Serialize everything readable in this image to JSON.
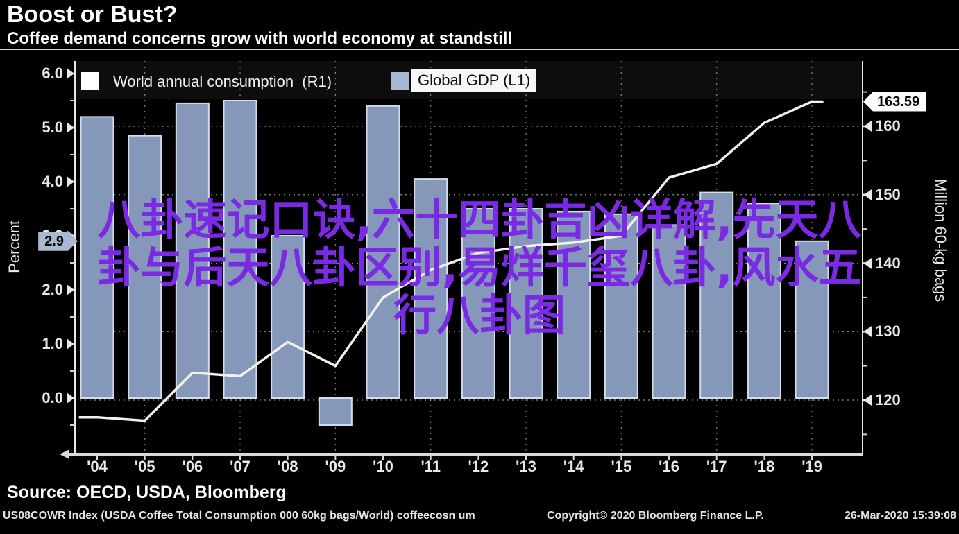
{
  "header": {
    "title": "Boost or Bust?",
    "subtitle": "Coffee demand concerns grow with world economy at standstill"
  },
  "legend": {
    "consumption": {
      "label": "World annual consumption  (R1)",
      "swatch_color": "#ffffff",
      "selected": false
    },
    "gdp": {
      "label": "Global GDP (L1)",
      "swatch_color": "#aab9d2",
      "selected": true
    }
  },
  "chart_data": {
    "type": "combo-bar-line",
    "categories": [
      "'04",
      "'05",
      "'06",
      "'07",
      "'08",
      "'09",
      "'10",
      "'11",
      "'12",
      "'13",
      "'14",
      "'15",
      "'16",
      "'17",
      "'18",
      "'19"
    ],
    "series": [
      {
        "name": "Global GDP (L1)",
        "type": "bar",
        "axis": "left",
        "color": "#8598ba",
        "border_color": "#d3dce9",
        "values": [
          5.2,
          4.85,
          5.45,
          5.5,
          3.0,
          -0.5,
          5.4,
          4.05,
          3.5,
          3.5,
          3.45,
          3.4,
          3.2,
          3.8,
          3.6,
          2.9
        ]
      },
      {
        "name": "World annual consumption (R1)",
        "type": "line",
        "axis": "right",
        "color": "#f4f1ea",
        "values": [
          117.5,
          117,
          124,
          123.5,
          128.5,
          125,
          135,
          139,
          141.5,
          142.5,
          143,
          144,
          152.5,
          154.5,
          160.5,
          163.59
        ]
      }
    ],
    "left_axis": {
      "label": "Percent",
      "tick_labels": [
        "0.0",
        "1.0",
        "2.0",
        "3.0",
        "4.0",
        "5.0",
        "6.0"
      ],
      "tick_values": [
        0,
        1,
        2,
        3,
        4,
        5,
        6
      ],
      "minor_tick_values": [
        -0.5,
        0.5,
        1.5,
        2.5,
        3.5,
        4.5,
        5.5
      ],
      "badge": "2.9",
      "badge_value": 2.9,
      "range": [
        -1.05,
        6.25
      ]
    },
    "right_axis": {
      "label": "Million 60-kg bags",
      "tick_labels": [
        "120",
        "130",
        "140",
        "150",
        "160"
      ],
      "tick_values": [
        120,
        130,
        140,
        150,
        160
      ],
      "minor_tick_values": [
        115,
        125,
        135,
        145,
        155,
        165
      ],
      "badge": "163.59",
      "badge_value": 163.59,
      "range": [
        112,
        169.6
      ]
    },
    "grid": {
      "horizontal_at_right_ticks": true,
      "vertical_at_categories": [
        "'05",
        "'07",
        "'09",
        "'11",
        "'13",
        "'15",
        "'17",
        "'19"
      ]
    },
    "title": "Boost or Bust?",
    "subtitle": "Coffee demand concerns grow with world economy at standstill"
  },
  "watermark": {
    "color": "#7a2ae2",
    "lines": [
      "八卦速记口诀,六十四卦吉凶详解,先天八",
      "卦与后天八卦区别,易烊千玺八卦,风水五",
      "行八卦图"
    ]
  },
  "source": "Source: OECD, USDA, Bloomberg",
  "footer": {
    "left": "US08COWR Index (USDA Coffee Total Consumption 000 60kg bags/World) coffeecosn um",
    "center": "Copyright© 2020 Bloomberg Finance L.P.",
    "right": "26-Mar-2020 15:39:08"
  }
}
